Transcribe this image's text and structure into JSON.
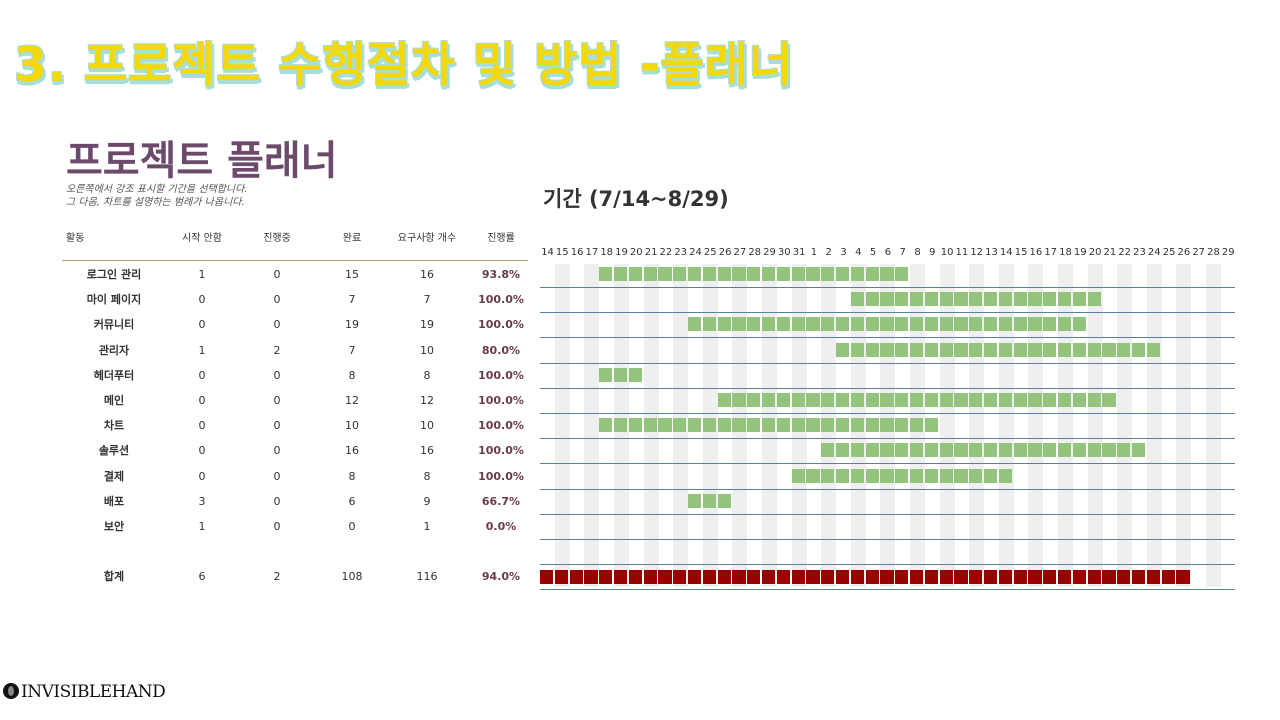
{
  "slide_title": "3. 프로젝트 수행절차 및 방법 -플래너",
  "planner_title": "프로젝트 플래너",
  "instructions": [
    "오른쪽에서 강조 표시할 기간을 선택합니다.",
    "그 다음, 차트를 설명하는 범례가 나옵니다."
  ],
  "period_title": "기간 (7/14~8/29)",
  "headers": {
    "activity": "활동",
    "not_started": "시작 안함",
    "in_progress": "진행중",
    "done": "완료",
    "req_count": "요구사항 개수",
    "progress": "진행률"
  },
  "days": [
    "14",
    "15",
    "16",
    "17",
    "18",
    "19",
    "20",
    "21",
    "22",
    "23",
    "24",
    "25",
    "26",
    "27",
    "28",
    "29",
    "30",
    "31",
    "1",
    "2",
    "3",
    "4",
    "5",
    "6",
    "7",
    "8",
    "9",
    "10",
    "11",
    "12",
    "13",
    "14",
    "15",
    "16",
    "17",
    "18",
    "19",
    "20",
    "21",
    "22",
    "23",
    "24",
    "25",
    "26",
    "27",
    "28",
    "29"
  ],
  "rows": [
    {
      "name": "로그인 관리",
      "not_started": "1",
      "in_progress": "0",
      "done": "15",
      "req": "16",
      "pct": "93.8%",
      "start_index": 4,
      "length": 21
    },
    {
      "name": "마이 페이지",
      "not_started": "0",
      "in_progress": "0",
      "done": "7",
      "req": "7",
      "pct": "100.0%",
      "start_index": 21,
      "length": 17
    },
    {
      "name": "커뮤니티",
      "not_started": "0",
      "in_progress": "0",
      "done": "19",
      "req": "19",
      "pct": "100.0%",
      "start_index": 10,
      "length": 27
    },
    {
      "name": "관리자",
      "not_started": "1",
      "in_progress": "2",
      "done": "7",
      "req": "10",
      "pct": "80.0%",
      "start_index": 20,
      "length": 22
    },
    {
      "name": "헤더푸터",
      "not_started": "0",
      "in_progress": "0",
      "done": "8",
      "req": "8",
      "pct": "100.0%",
      "start_index": 4,
      "length": 3
    },
    {
      "name": "메인",
      "not_started": "0",
      "in_progress": "0",
      "done": "12",
      "req": "12",
      "pct": "100.0%",
      "start_index": 12,
      "length": 27
    },
    {
      "name": "차트",
      "not_started": "0",
      "in_progress": "0",
      "done": "10",
      "req": "10",
      "pct": "100.0%",
      "start_index": 4,
      "length": 23
    },
    {
      "name": "솔루션",
      "not_started": "0",
      "in_progress": "0",
      "done": "16",
      "req": "16",
      "pct": "100.0%",
      "start_index": 19,
      "length": 22
    },
    {
      "name": "결제",
      "not_started": "0",
      "in_progress": "0",
      "done": "8",
      "req": "8",
      "pct": "100.0%",
      "start_index": 17,
      "length": 15
    },
    {
      "name": "배포",
      "not_started": "3",
      "in_progress": "0",
      "done": "6",
      "req": "9",
      "pct": "66.7%",
      "start_index": 10,
      "length": 3
    },
    {
      "name": "보안",
      "not_started": "1",
      "in_progress": "0",
      "done": "0",
      "req": "1",
      "pct": "0.0%",
      "start_index": 0,
      "length": 0
    }
  ],
  "total": {
    "name": "합계",
    "not_started": "6",
    "in_progress": "2",
    "done": "108",
    "req": "116",
    "pct": "94.0%",
    "start_index": 0,
    "length": 44
  },
  "colors": {
    "bar": "#93c47d",
    "bar_border": "#ffffff",
    "total_bar": "#990000",
    "grid_line": "#5a7fa0",
    "stripe": "#efefef",
    "title": "#f5d80a"
  },
  "logo_text": "INVISIBLEHAND"
}
